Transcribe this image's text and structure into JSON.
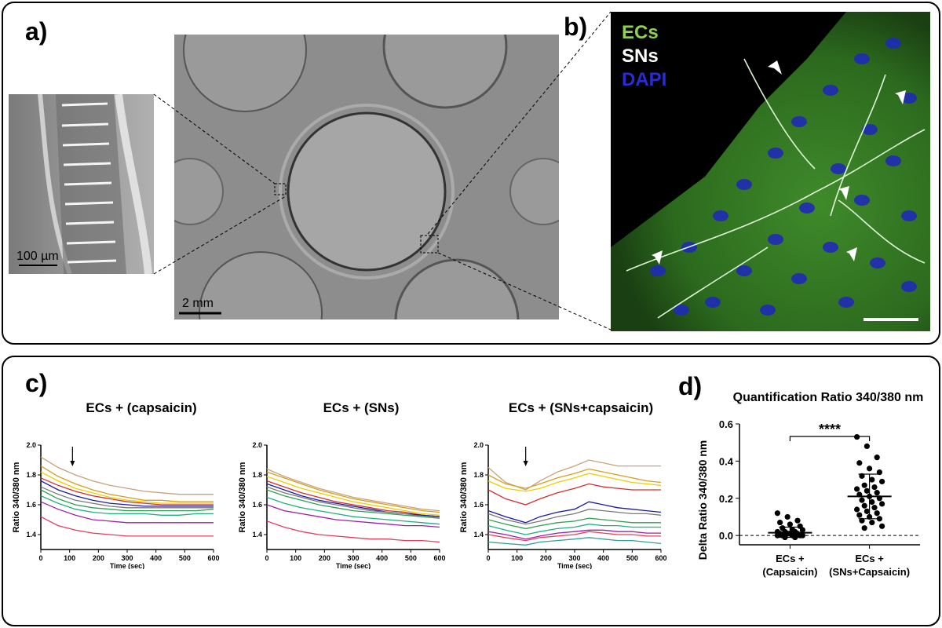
{
  "panels": {
    "a": {
      "label": "a)"
    },
    "b": {
      "label": "b)"
    },
    "c": {
      "label": "c)"
    },
    "d": {
      "label": "d)"
    }
  },
  "panel_a": {
    "inset_scalebar": "100 µm",
    "dish_scalebar": "2 mm"
  },
  "panel_b": {
    "legend": [
      {
        "text": "ECs",
        "color": "#8fd14f"
      },
      {
        "text": "SNs",
        "color": "#ffffff"
      },
      {
        "text": "DAPI",
        "color": "#2b2bd6"
      }
    ]
  },
  "colors": {
    "traces": [
      "#c8a27c",
      "#d4a020",
      "#e8d000",
      "#d03030",
      "#1a1aa0",
      "#7a7a7a",
      "#2fa050",
      "#20b080",
      "#a020a0",
      "#e04060",
      "#30a0a0",
      "#6a6a30"
    ]
  },
  "chart_data": [
    {
      "type": "line",
      "title": "ECs + (capsaicin)",
      "xlabel": "Time (sec)",
      "ylabel": "Ratio 340/380 nm",
      "xlim": [
        0,
        600
      ],
      "ylim": [
        1.3,
        2.0
      ],
      "xticks": [
        "0",
        "100",
        "200",
        "300",
        "400",
        "500",
        "600"
      ],
      "yticks": [
        "1.4",
        "1.6",
        "1.8",
        "2.0"
      ],
      "arrow_x": 110,
      "x": [
        0,
        60,
        120,
        180,
        240,
        300,
        360,
        420,
        480,
        540,
        600
      ],
      "series": [
        {
          "values": [
            1.92,
            1.85,
            1.8,
            1.76,
            1.73,
            1.71,
            1.69,
            1.68,
            1.67,
            1.67,
            1.67
          ]
        },
        {
          "values": [
            1.86,
            1.79,
            1.74,
            1.7,
            1.67,
            1.65,
            1.63,
            1.63,
            1.62,
            1.62,
            1.62
          ]
        },
        {
          "values": [
            1.82,
            1.76,
            1.71,
            1.68,
            1.65,
            1.63,
            1.62,
            1.61,
            1.61,
            1.61,
            1.61
          ]
        },
        {
          "values": [
            1.78,
            1.73,
            1.69,
            1.66,
            1.64,
            1.62,
            1.61,
            1.6,
            1.6,
            1.6,
            1.6
          ]
        },
        {
          "values": [
            1.76,
            1.7,
            1.66,
            1.63,
            1.61,
            1.6,
            1.59,
            1.59,
            1.59,
            1.59,
            1.59
          ]
        },
        {
          "values": [
            1.72,
            1.67,
            1.63,
            1.61,
            1.59,
            1.58,
            1.58,
            1.58,
            1.58,
            1.58,
            1.58
          ]
        },
        {
          "values": [
            1.7,
            1.64,
            1.6,
            1.58,
            1.57,
            1.56,
            1.56,
            1.56,
            1.56,
            1.56,
            1.57
          ]
        },
        {
          "values": [
            1.66,
            1.61,
            1.57,
            1.55,
            1.54,
            1.54,
            1.54,
            1.53,
            1.53,
            1.54,
            1.54
          ]
        },
        {
          "values": [
            1.62,
            1.57,
            1.53,
            1.5,
            1.49,
            1.48,
            1.48,
            1.48,
            1.48,
            1.48,
            1.48
          ]
        },
        {
          "values": [
            1.52,
            1.46,
            1.43,
            1.41,
            1.4,
            1.39,
            1.39,
            1.39,
            1.39,
            1.39,
            1.39
          ]
        }
      ]
    },
    {
      "type": "line",
      "title": "ECs + (SNs)",
      "xlabel": "Time (sec)",
      "ylabel": "Ratio 340/380 nm",
      "xlim": [
        0,
        600
      ],
      "ylim": [
        1.3,
        2.0
      ],
      "xticks": [
        "0",
        "100",
        "200",
        "300",
        "400",
        "500",
        "600"
      ],
      "yticks": [
        "1.4",
        "1.6",
        "1.8",
        "2.0"
      ],
      "x": [
        0,
        60,
        120,
        180,
        240,
        300,
        360,
        420,
        480,
        540,
        600
      ],
      "series": [
        {
          "values": [
            1.84,
            1.79,
            1.75,
            1.71,
            1.68,
            1.65,
            1.63,
            1.61,
            1.59,
            1.57,
            1.56
          ]
        },
        {
          "values": [
            1.82,
            1.78,
            1.74,
            1.7,
            1.67,
            1.64,
            1.62,
            1.6,
            1.58,
            1.56,
            1.55
          ]
        },
        {
          "values": [
            1.79,
            1.75,
            1.71,
            1.68,
            1.65,
            1.62,
            1.6,
            1.58,
            1.56,
            1.54,
            1.53
          ]
        },
        {
          "values": [
            1.76,
            1.72,
            1.68,
            1.65,
            1.62,
            1.6,
            1.58,
            1.56,
            1.55,
            1.53,
            1.52
          ]
        },
        {
          "values": [
            1.74,
            1.7,
            1.66,
            1.63,
            1.61,
            1.59,
            1.57,
            1.55,
            1.54,
            1.53,
            1.52
          ]
        },
        {
          "values": [
            1.72,
            1.68,
            1.65,
            1.62,
            1.6,
            1.58,
            1.56,
            1.55,
            1.54,
            1.52,
            1.51
          ]
        },
        {
          "values": [
            1.7,
            1.66,
            1.63,
            1.6,
            1.58,
            1.56,
            1.55,
            1.54,
            1.53,
            1.52,
            1.51
          ]
        },
        {
          "values": [
            1.65,
            1.61,
            1.58,
            1.56,
            1.54,
            1.52,
            1.51,
            1.5,
            1.49,
            1.48,
            1.47
          ]
        },
        {
          "values": [
            1.6,
            1.56,
            1.54,
            1.52,
            1.5,
            1.49,
            1.48,
            1.47,
            1.46,
            1.46,
            1.45
          ]
        },
        {
          "values": [
            1.49,
            1.45,
            1.42,
            1.4,
            1.39,
            1.38,
            1.37,
            1.37,
            1.36,
            1.36,
            1.35
          ]
        }
      ]
    },
    {
      "type": "line",
      "title": "ECs + (SNs+capsaicin)",
      "xlabel": "Time (sec)",
      "ylabel": "Ratio 340/380 nm",
      "xlim": [
        0,
        600
      ],
      "ylim": [
        1.3,
        2.0
      ],
      "xticks": [
        "0",
        "100",
        "200",
        "300",
        "400",
        "500",
        "600"
      ],
      "yticks": [
        "1.4",
        "1.6",
        "1.8",
        "2.0"
      ],
      "arrow_x": 130,
      "x": [
        0,
        60,
        130,
        180,
        240,
        300,
        350,
        400,
        450,
        500,
        550,
        600
      ],
      "series": [
        {
          "values": [
            1.85,
            1.75,
            1.7,
            1.76,
            1.82,
            1.86,
            1.9,
            1.88,
            1.86,
            1.86,
            1.86,
            1.86
          ]
        },
        {
          "values": [
            1.8,
            1.74,
            1.71,
            1.74,
            1.78,
            1.81,
            1.84,
            1.82,
            1.8,
            1.78,
            1.76,
            1.75
          ]
        },
        {
          "values": [
            1.76,
            1.71,
            1.69,
            1.71,
            1.75,
            1.78,
            1.81,
            1.79,
            1.77,
            1.75,
            1.74,
            1.73
          ]
        },
        {
          "values": [
            1.7,
            1.64,
            1.6,
            1.64,
            1.68,
            1.71,
            1.74,
            1.72,
            1.71,
            1.7,
            1.7,
            1.7
          ]
        },
        {
          "values": [
            1.56,
            1.52,
            1.48,
            1.52,
            1.55,
            1.57,
            1.62,
            1.6,
            1.58,
            1.57,
            1.56,
            1.55
          ]
        },
        {
          "values": [
            1.54,
            1.5,
            1.47,
            1.49,
            1.52,
            1.54,
            1.57,
            1.56,
            1.55,
            1.54,
            1.54,
            1.53
          ]
        },
        {
          "values": [
            1.5,
            1.47,
            1.44,
            1.46,
            1.48,
            1.49,
            1.51,
            1.5,
            1.49,
            1.48,
            1.48,
            1.48
          ]
        },
        {
          "values": [
            1.46,
            1.43,
            1.4,
            1.42,
            1.44,
            1.45,
            1.47,
            1.46,
            1.46,
            1.45,
            1.45,
            1.45
          ]
        },
        {
          "values": [
            1.42,
            1.4,
            1.37,
            1.39,
            1.41,
            1.42,
            1.43,
            1.43,
            1.42,
            1.42,
            1.41,
            1.41
          ]
        },
        {
          "values": [
            1.4,
            1.38,
            1.36,
            1.38,
            1.39,
            1.4,
            1.42,
            1.41,
            1.4,
            1.4,
            1.39,
            1.39
          ]
        },
        {
          "values": [
            1.35,
            1.34,
            1.33,
            1.35,
            1.36,
            1.37,
            1.38,
            1.37,
            1.36,
            1.36,
            1.35,
            1.34
          ]
        }
      ]
    },
    {
      "type": "scatter",
      "title": "Quantification Ratio 340/380 nm",
      "ylabel": "Delta Ratio 340/380 nm",
      "ylim": [
        -0.05,
        0.6
      ],
      "yticks": [
        "0.0",
        "0.2",
        "0.4",
        "0.6"
      ],
      "categories": [
        "ECs +\n(Capsaicin)",
        "ECs +\n(SNs+Capsaicin)"
      ],
      "significance": "****",
      "groups": [
        {
          "mean": 0.015,
          "sd_upper": 0.045,
          "sd_lower": -0.01,
          "points": [
            0.12,
            0.1,
            0.08,
            0.07,
            0.06,
            0.05,
            0.04,
            0.03,
            0.03,
            0.02,
            0.02,
            0.02,
            0.01,
            0.01,
            0.01,
            0.01,
            0.0,
            0.0,
            0.0,
            0.0,
            -0.01,
            -0.01,
            0.0,
            0.01
          ]
        },
        {
          "mean": 0.21,
          "sd_upper": 0.33,
          "sd_lower": 0.09,
          "points": [
            0.53,
            0.48,
            0.42,
            0.39,
            0.36,
            0.34,
            0.32,
            0.3,
            0.29,
            0.27,
            0.26,
            0.25,
            0.24,
            0.23,
            0.22,
            0.21,
            0.2,
            0.19,
            0.18,
            0.17,
            0.16,
            0.15,
            0.14,
            0.13,
            0.12,
            0.11,
            0.1,
            0.09,
            0.08,
            0.07,
            0.05,
            0.04
          ]
        }
      ]
    }
  ]
}
